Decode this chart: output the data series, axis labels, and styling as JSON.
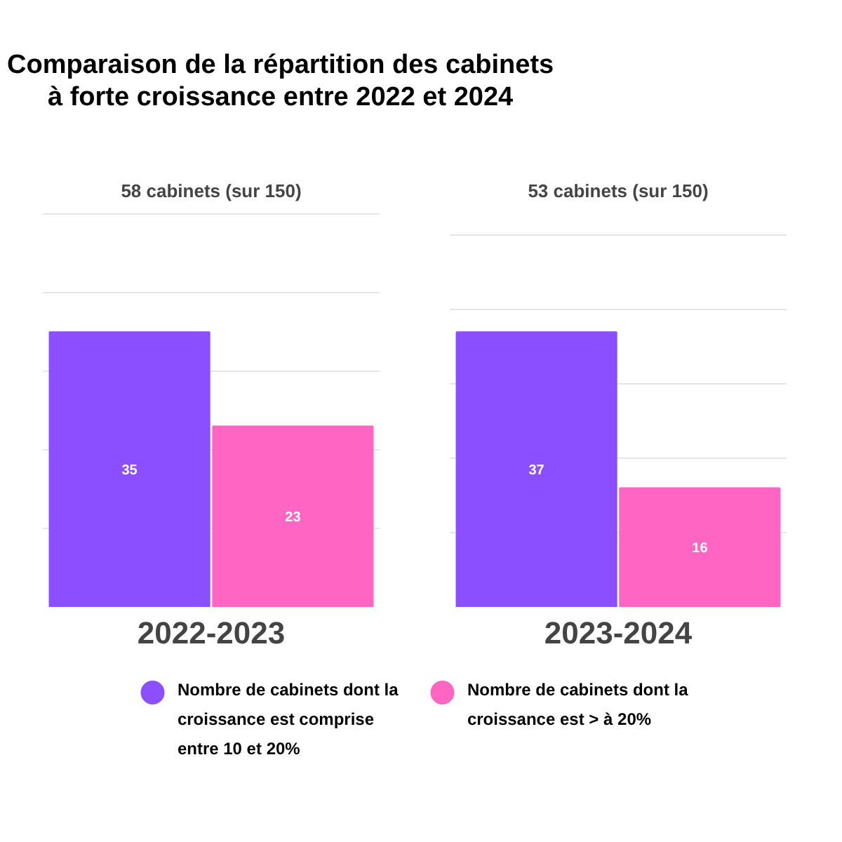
{
  "chart_data": [
    {
      "type": "bar",
      "title": "Comparaison de la répartition des cabinets\nà forte croissance entre 2022 et 2024",
      "subtitle": "58 cabinets (sur 150)",
      "xlabel": "2022-2023",
      "categories": [
        null
      ],
      "series": [
        {
          "name": "Nombre de cabinets dont la croissance est comprise entre 10 et 20%",
          "color": "#8c4fff",
          "values": [
            35
          ]
        },
        {
          "name": "Nombre de cabinets dont la croissance est > à 20%",
          "color": "#ff66c4",
          "values": [
            23
          ]
        }
      ],
      "grid": "y",
      "tick_labels": false,
      "data_labels": true,
      "legend": "bottom"
    },
    {
      "type": "bar",
      "subtitle": "53 cabinets (sur 150)",
      "xlabel": "2023-2024",
      "categories": [
        null
      ],
      "series": [
        {
          "color": "#8c4fff",
          "values": [
            37
          ]
        },
        {
          "color": "#ff66c4",
          "values": [
            16
          ]
        }
      ],
      "grid": "y",
      "tick_labels": false,
      "data_labels": true
    }
  ]
}
